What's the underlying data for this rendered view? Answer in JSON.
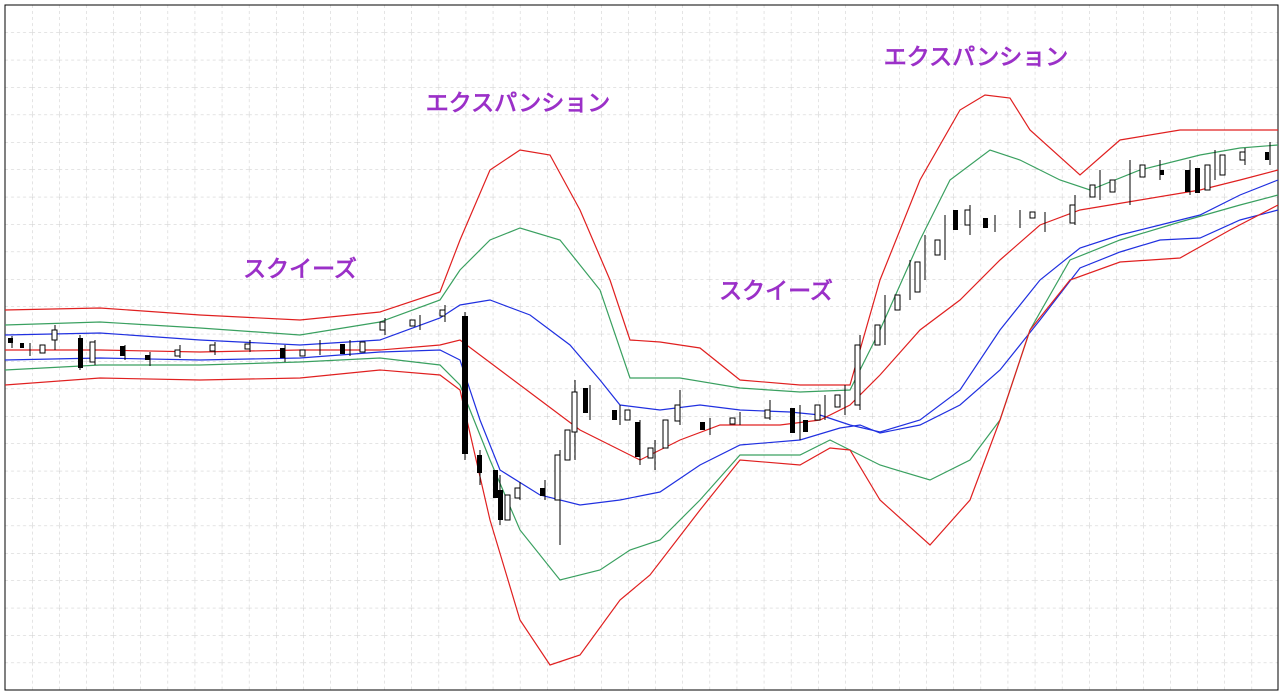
{
  "annotations": [
    "スクイーズ",
    "エクスパンション",
    "スクイーズ",
    "エクスパンション"
  ]
}
